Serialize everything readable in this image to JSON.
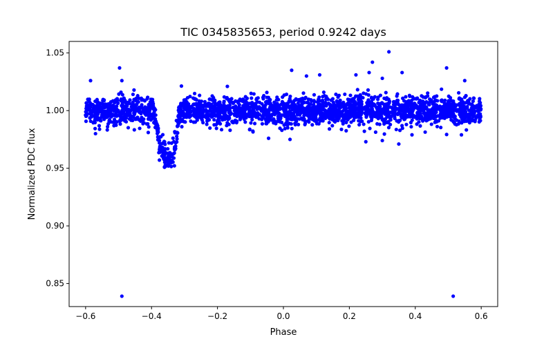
{
  "chart_data": {
    "type": "scatter",
    "title": "TIC 0345835653, period 0.9242 days",
    "xlabel": "Phase",
    "ylabel": "Normalized PDC flux",
    "xlim": [
      -0.65,
      0.65
    ],
    "ylim": [
      0.83,
      1.06
    ],
    "xticks": [
      -0.6,
      -0.4,
      -0.2,
      0.0,
      0.2,
      0.4,
      0.6
    ],
    "xtick_labels": [
      "−0.6",
      "−0.4",
      "−0.2",
      "0.0",
      "0.2",
      "0.4",
      "0.6"
    ],
    "yticks": [
      0.85,
      0.9,
      0.95,
      1.0,
      1.05
    ],
    "ytick_labels": [
      "0.85",
      "0.90",
      "0.95",
      "1.00",
      "1.05"
    ],
    "grid": false,
    "marker_color": "#0000ff",
    "series": [
      {
        "name": "PDC flux",
        "description": "phase-folded light curve; baseline ~1.000 with scatter ~0.006 over phase -0.6 to 0.6; transit dip centred near phase -0.345 reaching ~0.950",
        "baseline": 1.0,
        "scatter": 0.006,
        "phase_range": [
          -0.6,
          0.6
        ],
        "dip": {
          "center": -0.345,
          "depth": 0.043,
          "ingress_halfwidth": 0.05,
          "egress_halfwidth": 0.03,
          "min_flux": 0.95
        },
        "n_points": 2600,
        "outliers": [
          {
            "x": -0.49,
            "y": 0.839
          },
          {
            "x": 0.515,
            "y": 0.839
          },
          {
            "x": 0.32,
            "y": 1.051
          },
          {
            "x": 0.27,
            "y": 1.042
          },
          {
            "x": 0.495,
            "y": 1.037
          },
          {
            "x": -0.497,
            "y": 1.037
          },
          {
            "x": 0.025,
            "y": 1.035
          },
          {
            "x": 0.26,
            "y": 1.033
          },
          {
            "x": 0.36,
            "y": 1.033
          },
          {
            "x": 0.11,
            "y": 1.031
          },
          {
            "x": 0.22,
            "y": 1.031
          },
          {
            "x": -0.585,
            "y": 1.026
          },
          {
            "x": -0.49,
            "y": 1.026
          },
          {
            "x": 0.07,
            "y": 1.03
          },
          {
            "x": 0.3,
            "y": 1.028
          },
          {
            "x": 0.55,
            "y": 1.026
          },
          {
            "x": -0.17,
            "y": 1.021
          },
          {
            "x": 0.25,
            "y": 0.973
          },
          {
            "x": 0.3,
            "y": 0.974
          },
          {
            "x": 0.35,
            "y": 0.971
          },
          {
            "x": 0.02,
            "y": 0.975
          },
          {
            "x": -0.045,
            "y": 0.976
          },
          {
            "x": 0.54,
            "y": 0.979
          },
          {
            "x": -0.57,
            "y": 0.98
          },
          {
            "x": -0.41,
            "y": 0.981
          },
          {
            "x": 0.39,
            "y": 0.979
          }
        ]
      }
    ]
  }
}
